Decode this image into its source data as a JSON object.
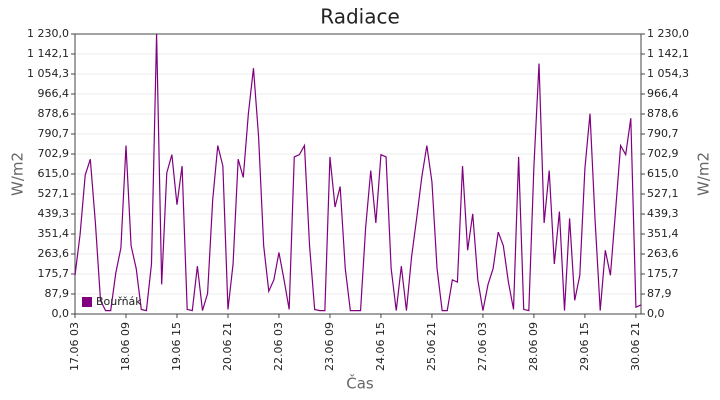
{
  "chart_data": {
    "type": "line",
    "title": "Radiace",
    "x_label": "Čas",
    "y_label": "W/m2",
    "categories": [
      "17.06 03",
      null,
      null,
      null,
      null,
      null,
      null,
      null,
      null,
      null,
      "18.06 09",
      null,
      null,
      null,
      null,
      null,
      null,
      null,
      null,
      null,
      "19.06 15",
      null,
      null,
      null,
      null,
      null,
      null,
      null,
      null,
      null,
      "20.06 21",
      null,
      null,
      null,
      null,
      null,
      null,
      null,
      null,
      null,
      "22.06 03",
      null,
      null,
      null,
      null,
      null,
      null,
      null,
      null,
      null,
      "23.06 09",
      null,
      null,
      null,
      null,
      null,
      null,
      null,
      null,
      null,
      "24.06 15",
      null,
      null,
      null,
      null,
      null,
      null,
      null,
      null,
      null,
      "25.06 21",
      null,
      null,
      null,
      null,
      null,
      null,
      null,
      null,
      null,
      "27.06 03",
      null,
      null,
      null,
      null,
      null,
      null,
      null,
      null,
      null,
      "28.06 09",
      null,
      null,
      null,
      null,
      null,
      null,
      null,
      null,
      null,
      "29.06 15",
      null,
      null,
      null,
      null,
      null,
      null,
      null,
      null,
      null,
      "30.06 21",
      null
    ],
    "series": [
      {
        "name": "Bouřňák",
        "color": "#800080",
        "values": [
          170,
          350,
          610,
          680,
          400,
          60,
          15,
          15,
          180,
          290,
          740,
          300,
          200,
          20,
          15,
          220,
          1230,
          130,
          620,
          700,
          480,
          650,
          20,
          15,
          210,
          15,
          90,
          500,
          740,
          650,
          20,
          220,
          680,
          600,
          880,
          1080,
          780,
          300,
          100,
          150,
          270,
          150,
          20,
          690,
          700,
          740,
          300,
          20,
          15,
          15,
          690,
          470,
          560,
          200,
          15,
          15,
          15,
          380,
          630,
          400,
          700,
          690,
          200,
          15,
          210,
          15,
          250,
          420,
          600,
          740,
          580,
          200,
          15,
          15,
          150,
          140,
          650,
          280,
          440,
          150,
          15,
          130,
          200,
          360,
          300,
          140,
          20,
          690,
          20,
          15,
          650,
          1100,
          400,
          630,
          220,
          450,
          15,
          420,
          60,
          170,
          640,
          880,
          410,
          15,
          280,
          170,
          450,
          740,
          700,
          860,
          30,
          40
        ]
      }
    ],
    "ylim": [
      0,
      1230
    ],
    "yticks": [
      {
        "value": 0,
        "label": "0,0"
      },
      {
        "value": 87.9,
        "label": "87,9"
      },
      {
        "value": 175.7,
        "label": "175,7"
      },
      {
        "value": 263.6,
        "label": "263,6"
      },
      {
        "value": 351.4,
        "label": "351,4"
      },
      {
        "value": 439.3,
        "label": "439,3"
      },
      {
        "value": 527.1,
        "label": "527,1"
      },
      {
        "value": 615,
        "label": "615,0"
      },
      {
        "value": 702.9,
        "label": "702,9"
      },
      {
        "value": 790.7,
        "label": "790,7"
      },
      {
        "value": 878.6,
        "label": "878,6"
      },
      {
        "value": 966.4,
        "label": "966,4"
      },
      {
        "value": 1054.3,
        "label": "1 054,3"
      },
      {
        "value": 1142.1,
        "label": "1 142,1"
      },
      {
        "value": 1230,
        "label": "1 230,0"
      }
    ],
    "grid": true,
    "legend": "lower left"
  }
}
